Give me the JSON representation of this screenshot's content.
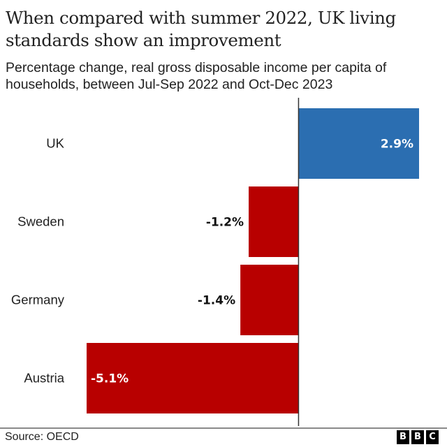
{
  "chart_data": {
    "type": "bar",
    "orientation": "horizontal",
    "title": "When compared with summer 2022, UK living standards show an improvement",
    "subtitle": "Percentage change, real gross disposable income per capita of households, between Jul-Sep 2022 and Oct-Dec 2023",
    "categories": [
      "UK",
      "Sweden",
      "Germany",
      "Austria"
    ],
    "values": [
      2.9,
      -1.2,
      -1.4,
      -5.1
    ],
    "value_labels": [
      "2.9%",
      "-1.2%",
      "-1.4%",
      "-5.1%"
    ],
    "colors": {
      "positive": "#2b6eb1",
      "negative": "#b80000",
      "axis": "#333333"
    },
    "xlim": [
      -5.1,
      2.9
    ],
    "xlabel": "",
    "ylabel": "",
    "grid": false,
    "legend": "none"
  },
  "footer": {
    "source": "Source: OECD",
    "logo_letters": [
      "B",
      "B",
      "C"
    ]
  }
}
